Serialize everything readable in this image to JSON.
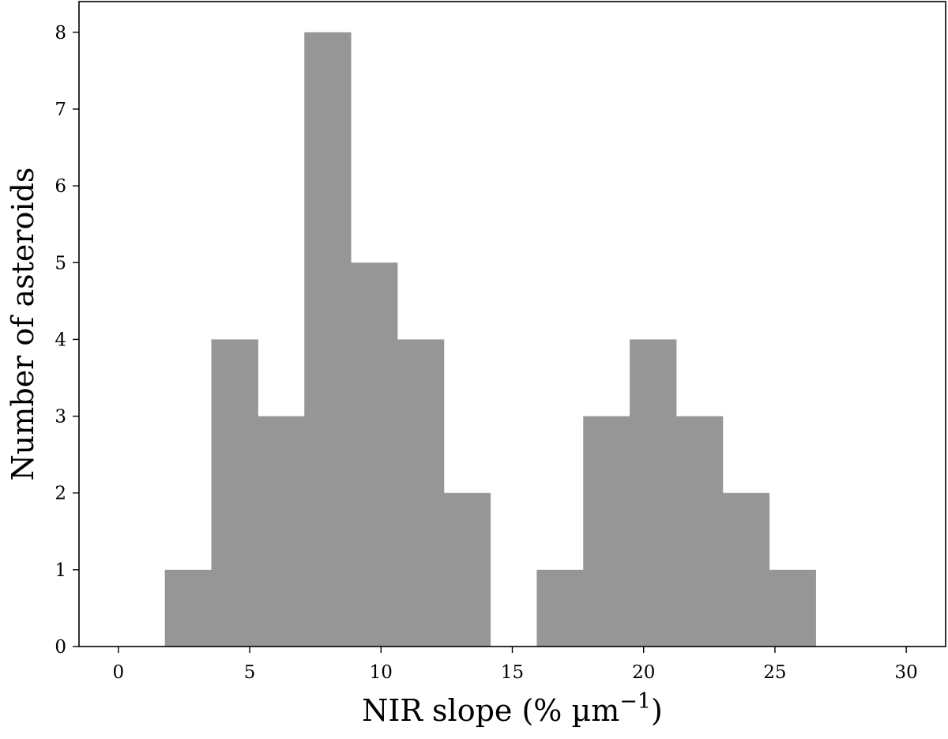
{
  "chart_data": {
    "type": "bar",
    "histogram": true,
    "bins": [
      {
        "x0": 1.77,
        "x1": 3.54,
        "count": 1
      },
      {
        "x0": 3.54,
        "x1": 5.31,
        "count": 4
      },
      {
        "x0": 5.31,
        "x1": 7.08,
        "count": 3
      },
      {
        "x0": 7.08,
        "x1": 8.85,
        "count": 8
      },
      {
        "x0": 8.85,
        "x1": 10.62,
        "count": 5
      },
      {
        "x0": 10.62,
        "x1": 12.39,
        "count": 4
      },
      {
        "x0": 12.39,
        "x1": 14.16,
        "count": 2
      },
      {
        "x0": 14.16,
        "x1": 15.93,
        "count": 0
      },
      {
        "x0": 15.93,
        "x1": 17.7,
        "count": 1
      },
      {
        "x0": 17.7,
        "x1": 19.47,
        "count": 3
      },
      {
        "x0": 19.47,
        "x1": 21.24,
        "count": 4
      },
      {
        "x0": 21.24,
        "x1": 23.01,
        "count": 3
      },
      {
        "x0": 23.01,
        "x1": 24.78,
        "count": 2
      },
      {
        "x0": 24.78,
        "x1": 26.55,
        "count": 1
      }
    ],
    "xlabel": "NIR slope (% µm",
    "xlabel_superscript": "−1",
    "xlabel_close": ")",
    "ylabel": "Number of asteroids",
    "xlim": [
      -1.5,
      31.5
    ],
    "ylim": [
      0,
      8.4
    ],
    "xticks": [
      0,
      5,
      10,
      15,
      20,
      25,
      30
    ],
    "yticks": [
      0,
      1,
      2,
      3,
      4,
      5,
      6,
      7,
      8
    ],
    "bar_color": "#969696",
    "grid": false
  }
}
